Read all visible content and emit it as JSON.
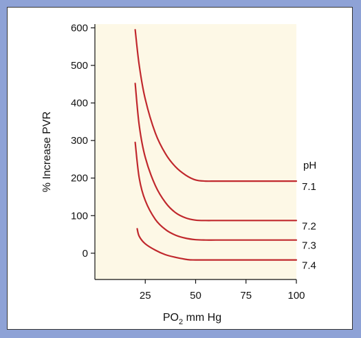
{
  "chart_data": {
    "type": "line",
    "title": "",
    "xlabel_main": "PO",
    "xlabel_sub": "2",
    "xlabel_rest": " mm Hg",
    "ylabel": "% Increase PVR",
    "xlim": [
      0,
      100
    ],
    "ylim": [
      -70,
      610
    ],
    "x_ticks": [
      25,
      50,
      75,
      100
    ],
    "y_ticks": [
      0,
      100,
      200,
      300,
      400,
      500,
      600
    ],
    "grid": false,
    "legend_title": "pH",
    "colors": {
      "plot_bg": "#fdf8e6",
      "line": "#c0282d",
      "border": "#8ea2d6"
    },
    "series": [
      {
        "name": "7.1",
        "x": [
          20,
          22,
          25,
          30,
          35,
          40,
          45,
          50,
          55,
          60,
          70,
          80,
          90,
          100
        ],
        "y": [
          595,
          500,
          410,
          320,
          265,
          230,
          208,
          195,
          192,
          192,
          192,
          192,
          192,
          192
        ]
      },
      {
        "name": "7.2",
        "x": [
          20,
          22,
          25,
          30,
          35,
          40,
          45,
          50,
          55,
          60,
          70,
          80,
          90,
          100
        ],
        "y": [
          452,
          340,
          255,
          180,
          135,
          108,
          94,
          88,
          87,
          87,
          87,
          87,
          87,
          87
        ]
      },
      {
        "name": "7.3",
        "x": [
          20,
          22,
          25,
          30,
          35,
          40,
          45,
          50,
          55,
          60,
          70,
          80,
          90,
          100
        ],
        "y": [
          295,
          200,
          140,
          90,
          63,
          48,
          40,
          36,
          35,
          35,
          35,
          35,
          35,
          35
        ]
      },
      {
        "name": "7.4",
        "x": [
          21,
          22,
          25,
          30,
          35,
          40,
          46,
          50,
          60,
          70,
          80,
          90,
          100
        ],
        "y": [
          65,
          45,
          25,
          8,
          -4,
          -11,
          -17,
          -18,
          -18,
          -18,
          -18,
          -18,
          -18
        ]
      }
    ]
  }
}
